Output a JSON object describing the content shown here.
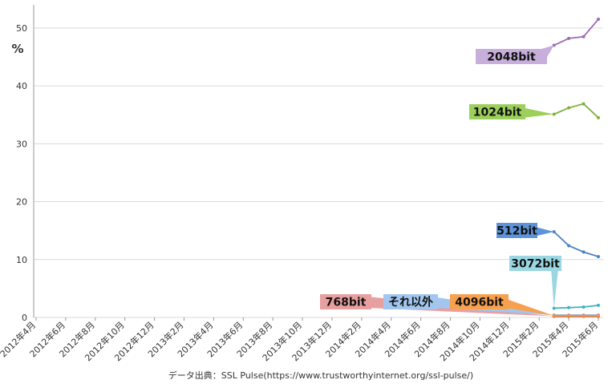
{
  "chart_data": {
    "type": "line",
    "y_label": "%",
    "source": "データ出典：SSL Pulse(https://www.trustworthyinternet.org/ssl-pulse/)",
    "categories": [
      "2012年4月",
      null,
      "2012年6月",
      null,
      "2012年8月",
      null,
      "2012年10月",
      null,
      "2012年12月",
      null,
      "2013年2月",
      null,
      "2013年4月",
      null,
      "2013年6月",
      null,
      "2013年8月",
      null,
      "2013年10月",
      null,
      "2013年12月",
      null,
      "2014年2月",
      null,
      "2014年4月",
      null,
      "2014年6月",
      null,
      "2014年8月",
      null,
      "2014年10月",
      null,
      "2014年12月",
      null,
      "2015年2月",
      null,
      "2015年4月",
      null,
      "2015年6月"
    ],
    "ylim": [
      0,
      54
    ],
    "yticks": [
      0,
      10,
      20,
      30,
      40,
      50
    ],
    "grid": true,
    "series": [
      {
        "name": "2048bit",
        "color": "#9a6db5",
        "label_color": "#c8aedb",
        "values": [
          null,
          null,
          null,
          null,
          null,
          null,
          null,
          null,
          null,
          null,
          null,
          null,
          null,
          null,
          null,
          null,
          null,
          null,
          null,
          null,
          null,
          null,
          null,
          null,
          null,
          null,
          null,
          null,
          null,
          null,
          null,
          null,
          null,
          null,
          null,
          47.0,
          48.2,
          48.5,
          51.5
        ]
      },
      {
        "name": "1024bit",
        "color": "#7fb040",
        "label_color": "#9ccf5c",
        "values": [
          null,
          null,
          null,
          null,
          null,
          null,
          null,
          null,
          null,
          null,
          null,
          null,
          null,
          null,
          null,
          null,
          null,
          null,
          null,
          null,
          null,
          null,
          null,
          null,
          null,
          null,
          null,
          null,
          null,
          null,
          null,
          null,
          null,
          null,
          null,
          35.1,
          36.2,
          36.9,
          34.5
        ]
      },
      {
        "name": "512bit",
        "color": "#4a83c9",
        "label_color": "#5d94d9",
        "values": [
          null,
          null,
          null,
          null,
          null,
          null,
          null,
          null,
          null,
          null,
          null,
          null,
          null,
          null,
          null,
          null,
          null,
          null,
          null,
          null,
          null,
          null,
          null,
          null,
          null,
          null,
          null,
          null,
          null,
          null,
          null,
          null,
          null,
          null,
          null,
          14.8,
          12.4,
          11.3,
          10.5
        ]
      },
      {
        "name": "3072bit",
        "color": "#3db4c0",
        "label_color": "#9ad7e3",
        "values": [
          null,
          null,
          null,
          null,
          null,
          null,
          null,
          null,
          null,
          null,
          null,
          null,
          null,
          null,
          null,
          null,
          null,
          null,
          null,
          null,
          null,
          null,
          null,
          null,
          null,
          null,
          null,
          null,
          null,
          null,
          null,
          null,
          null,
          null,
          null,
          1.6,
          1.7,
          1.8,
          2.1
        ]
      },
      {
        "name": "768bit",
        "color": "#c9504d",
        "label_color": "#e89f9f",
        "values": [
          null,
          null,
          null,
          null,
          null,
          null,
          null,
          null,
          null,
          null,
          null,
          null,
          null,
          null,
          null,
          null,
          null,
          null,
          null,
          null,
          null,
          null,
          null,
          null,
          null,
          null,
          null,
          null,
          null,
          null,
          null,
          null,
          null,
          null,
          null,
          0.2,
          0.2,
          0.2,
          0.2
        ]
      },
      {
        "name": "それ以外",
        "color": "#6fa4e0",
        "label_color": "#a2c6ee",
        "values": [
          null,
          null,
          null,
          null,
          null,
          null,
          null,
          null,
          null,
          null,
          null,
          null,
          null,
          null,
          null,
          null,
          null,
          null,
          null,
          null,
          null,
          null,
          null,
          null,
          null,
          null,
          null,
          null,
          null,
          null,
          null,
          null,
          null,
          null,
          null,
          0.4,
          0.4,
          0.4,
          0.4
        ]
      },
      {
        "name": "4096bit",
        "color": "#f29438",
        "label_color": "#f7a04e",
        "values": [
          null,
          null,
          null,
          null,
          null,
          null,
          null,
          null,
          null,
          null,
          null,
          null,
          null,
          null,
          null,
          null,
          null,
          null,
          null,
          null,
          null,
          null,
          null,
          null,
          null,
          null,
          null,
          null,
          null,
          null,
          null,
          null,
          null,
          null,
          null,
          0.3,
          0.3,
          0.3,
          0.3
        ]
      }
    ]
  }
}
